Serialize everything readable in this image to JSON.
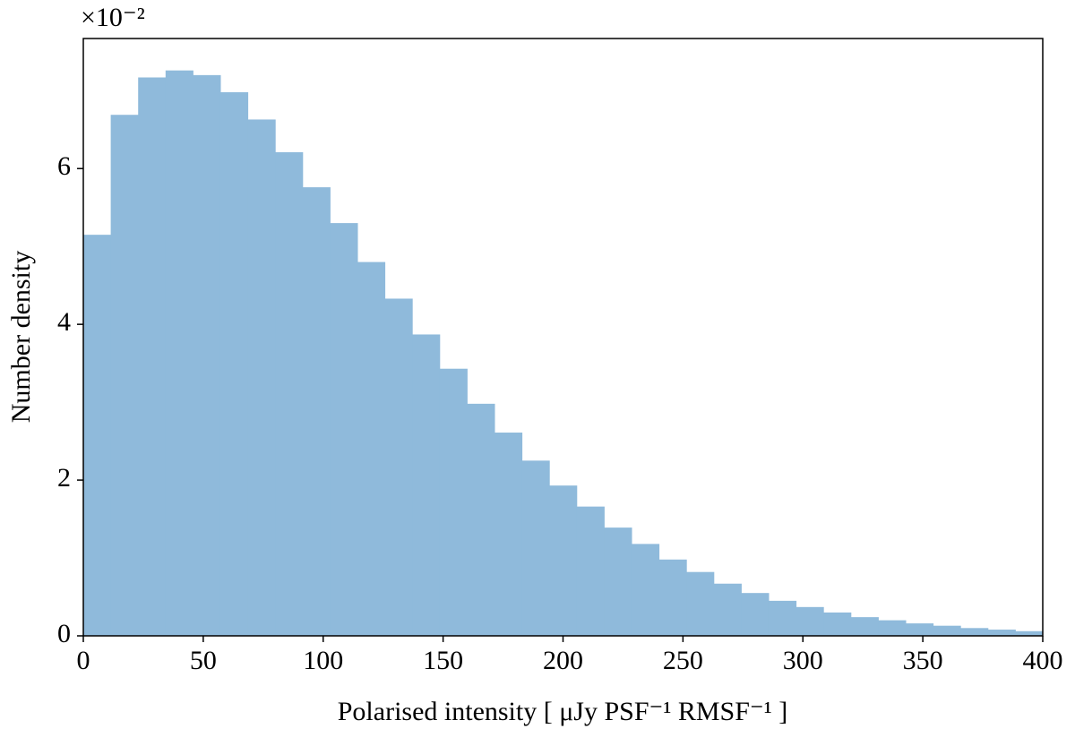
{
  "chart_data": {
    "type": "histogram",
    "offset_text": "×10⁻²",
    "xlabel": "Polarised intensity [ μJy PSF⁻¹ RMSF⁻¹ ]",
    "ylabel": "Number density",
    "bins": [
      0,
      11.43,
      22.86,
      34.29,
      45.71,
      57.14,
      68.57,
      80,
      91.43,
      102.86,
      114.29,
      125.71,
      137.14,
      148.57,
      160,
      171.43,
      182.86,
      194.29,
      205.71,
      217.14,
      228.57,
      240,
      251.43,
      262.86,
      274.29,
      285.71,
      297.14,
      308.57,
      320,
      331.43,
      342.86,
      354.29,
      365.71,
      377.14,
      388.57,
      400
    ],
    "values": [
      5.15,
      6.69,
      7.17,
      7.26,
      7.2,
      6.98,
      6.63,
      6.21,
      5.76,
      5.3,
      4.8,
      4.33,
      3.87,
      3.43,
      2.98,
      2.61,
      2.25,
      1.93,
      1.66,
      1.39,
      1.18,
      0.98,
      0.82,
      0.67,
      0.55,
      0.45,
      0.37,
      0.3,
      0.24,
      0.2,
      0.16,
      0.13,
      0.1,
      0.08,
      0.06
    ],
    "color": "#8fbadb",
    "xlim": [
      0,
      400
    ],
    "xticks": [
      0,
      50,
      100,
      150,
      200,
      250,
      300,
      350,
      400
    ],
    "ylim": [
      0,
      7.67
    ],
    "yticks": [
      0,
      2,
      4,
      6
    ]
  }
}
